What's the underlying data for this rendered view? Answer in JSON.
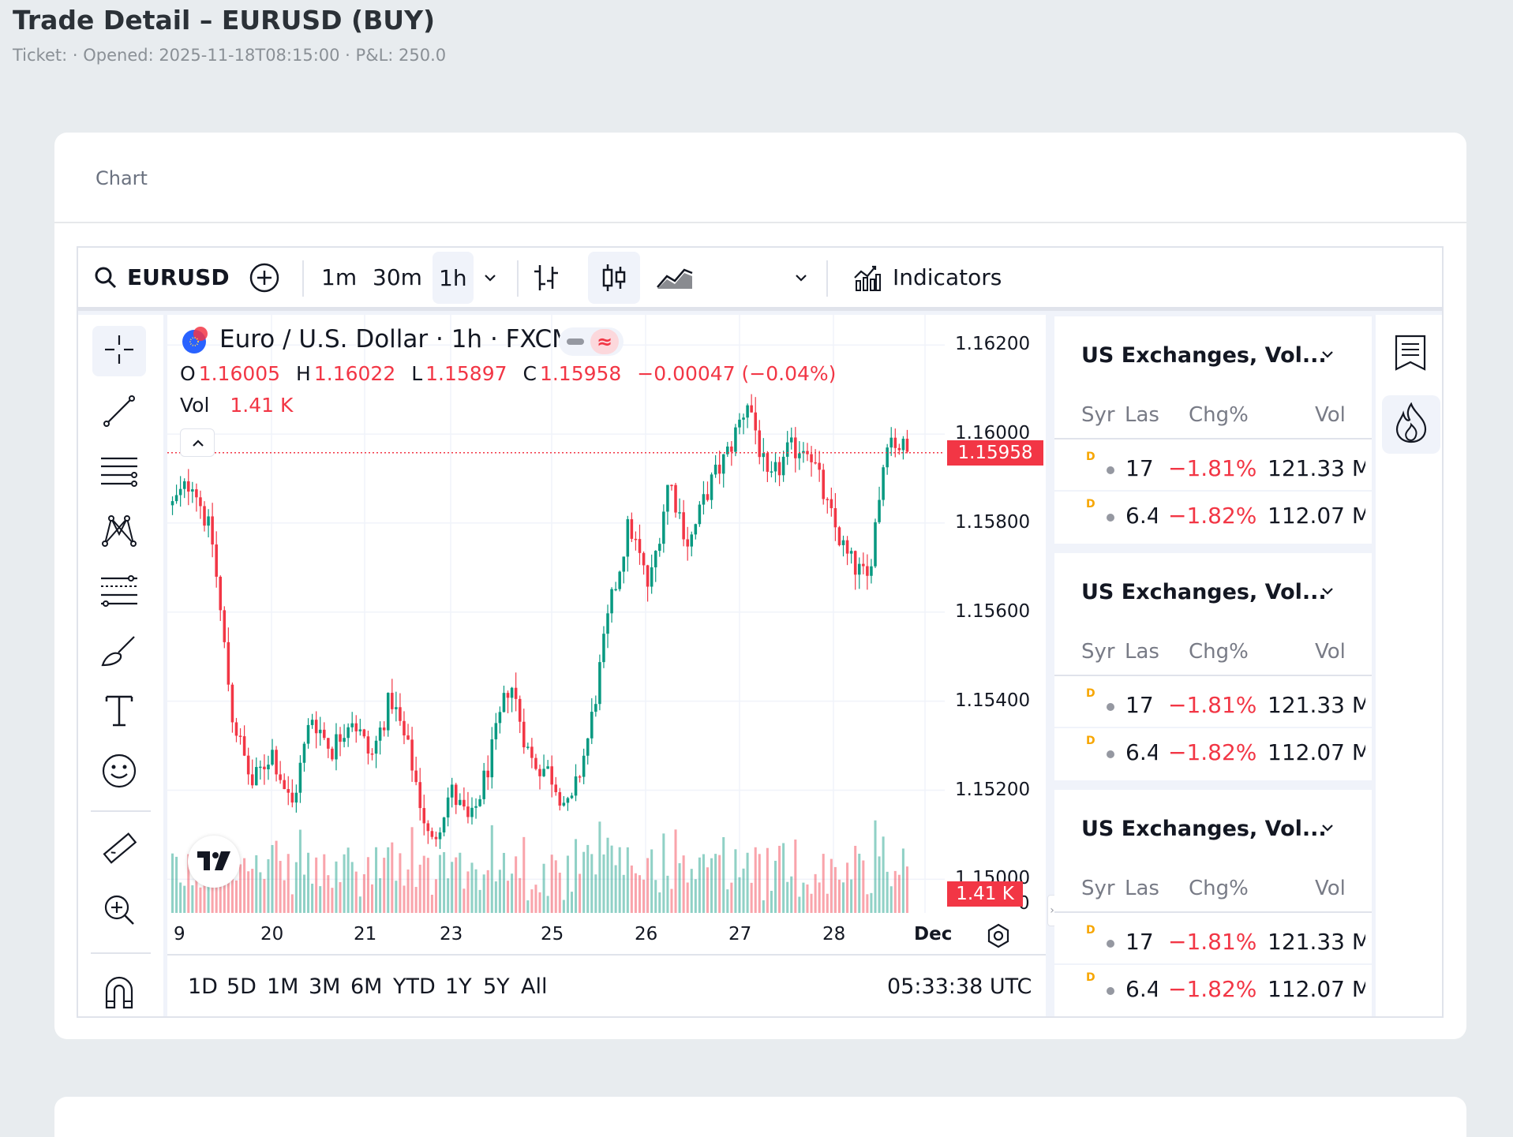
{
  "page": {
    "title": "Trade Detail – EURUSD (BUY)",
    "subtitle": "Ticket: · Opened: 2025-11-18T08:15:00 · P&L: 250.0"
  },
  "card": {
    "title": "Chart"
  },
  "toolbar": {
    "symbol": "EURUSD",
    "timeframes": [
      "1m",
      "30m",
      "1h"
    ],
    "active_timeframe": "1h",
    "indicators_label": "Indicators"
  },
  "legend": {
    "title": "Euro / U.S. Dollar · 1h · FXCM",
    "o_label": "O",
    "o_value": "1.16005",
    "h_label": "H",
    "h_value": "1.16022",
    "l_label": "L",
    "l_value": "1.15897",
    "c_label": "C",
    "c_value": "1.15958",
    "change": "−0.00047 (−0.04%)",
    "vol_label": "Vol",
    "vol_value": "1.41 K"
  },
  "price_axis": {
    "ticks": [
      "1.16200",
      "1.16000",
      "1.15800",
      "1.15600",
      "1.15400",
      "1.15200",
      "1.15000",
      "0"
    ],
    "last_price_label": "1.15958",
    "last_volume_label": "1.41 K"
  },
  "time_axis": {
    "ticks": [
      "9",
      "20",
      "21",
      "23",
      "25",
      "26",
      "27",
      "28",
      "Dec"
    ]
  },
  "bottom_bar": {
    "ranges": [
      "1D",
      "5D",
      "1M",
      "3M",
      "6M",
      "YTD",
      "1Y",
      "5Y",
      "All"
    ],
    "clock": "05:33:38 UTC"
  },
  "watchlists": [
    {
      "title": "US Exchanges, Vol...",
      "columns": [
        "Syr",
        "Las",
        "Chg%",
        "Vol"
      ],
      "rows": [
        {
          "badge": "D",
          "last": "17",
          "chg": "−1.81%",
          "vol": "121.33 M"
        },
        {
          "badge": "D",
          "last": "6.4",
          "chg": "−1.82%",
          "vol": "112.07 M"
        }
      ]
    },
    {
      "title": "US Exchanges, Vol...",
      "columns": [
        "Syr",
        "Las",
        "Chg%",
        "Vol"
      ],
      "rows": [
        {
          "badge": "D",
          "last": "17",
          "chg": "−1.81%",
          "vol": "121.33 M"
        },
        {
          "badge": "D",
          "last": "6.4",
          "chg": "−1.82%",
          "vol": "112.07 M"
        }
      ]
    },
    {
      "title": "US Exchanges, Vol...",
      "columns": [
        "Syr",
        "Las",
        "Chg%",
        "Vol"
      ],
      "rows": [
        {
          "badge": "D",
          "last": "17",
          "chg": "−1.81%",
          "vol": "121.33 M"
        },
        {
          "badge": "D",
          "last": "6.4",
          "chg": "−1.82%",
          "vol": "112.07 M"
        }
      ]
    }
  ],
  "colors": {
    "up": "#089981",
    "down": "#f23645",
    "accent": "#2962ff"
  },
  "chart_data": {
    "type": "candlestick",
    "instrument": "Euro / U.S. Dollar",
    "interval": "1h",
    "source": "FXCM",
    "x_tick_labels": [
      "9",
      "20",
      "21",
      "23",
      "25",
      "26",
      "27",
      "28",
      "Dec"
    ],
    "y_tick_labels": [
      "1.16200",
      "1.16000",
      "1.15800",
      "1.15600",
      "1.15400",
      "1.15200",
      "1.15000"
    ],
    "ylim": [
      1.1485,
      1.1625
    ],
    "last_price": 1.15958,
    "close_path": [
      {
        "x": "19",
        "y": 1.1584
      },
      {
        "x": "19",
        "y": 1.159
      },
      {
        "x": "19",
        "y": 1.1576
      },
      {
        "x": "20",
        "y": 1.1537
      },
      {
        "x": "20",
        "y": 1.1521
      },
      {
        "x": "20",
        "y": 1.1529
      },
      {
        "x": "20",
        "y": 1.1516
      },
      {
        "x": "21",
        "y": 1.1537
      },
      {
        "x": "21",
        "y": 1.1529
      },
      {
        "x": "21",
        "y": 1.1537
      },
      {
        "x": "21",
        "y": 1.1527
      },
      {
        "x": "21",
        "y": 1.1541
      },
      {
        "x": "22",
        "y": 1.1527
      },
      {
        "x": "22",
        "y": 1.1507
      },
      {
        "x": "23",
        "y": 1.152
      },
      {
        "x": "23",
        "y": 1.1512
      },
      {
        "x": "24",
        "y": 1.1527
      },
      {
        "x": "24",
        "y": 1.1545
      },
      {
        "x": "24",
        "y": 1.1527
      },
      {
        "x": "25",
        "y": 1.1524
      },
      {
        "x": "25",
        "y": 1.1515
      },
      {
        "x": "25",
        "y": 1.1533
      },
      {
        "x": "25",
        "y": 1.156
      },
      {
        "x": "26",
        "y": 1.158
      },
      {
        "x": "26",
        "y": 1.1565
      },
      {
        "x": "26",
        "y": 1.159
      },
      {
        "x": "26",
        "y": 1.1575
      },
      {
        "x": "27",
        "y": 1.1588
      },
      {
        "x": "27",
        "y": 1.1596
      },
      {
        "x": "27",
        "y": 1.1608
      },
      {
        "x": "27",
        "y": 1.1588
      },
      {
        "x": "28",
        "y": 1.1596
      },
      {
        "x": "28",
        "y": 1.1598
      },
      {
        "x": "28",
        "y": 1.1583
      },
      {
        "x": "28",
        "y": 1.1572
      },
      {
        "x": "28",
        "y": 1.1567
      },
      {
        "x": "28",
        "y": 1.16
      },
      {
        "x": "28",
        "y": 1.15958
      }
    ]
  }
}
